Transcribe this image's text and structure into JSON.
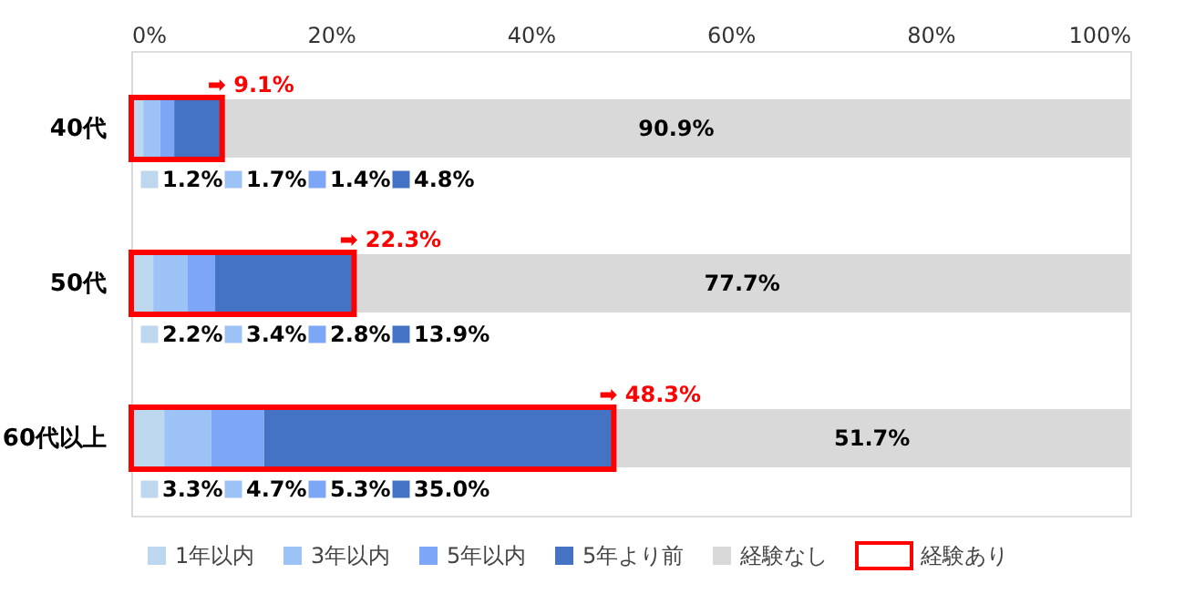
{
  "chart_data": {
    "type": "bar",
    "orientation": "horizontal",
    "categories": [
      "40代",
      "50代",
      "60代以上"
    ],
    "series": [
      {
        "name": "1年以内",
        "color": "#bdd7ee",
        "base": [
          0,
          0,
          0
        ],
        "values": [
          1.2,
          2.2,
          3.3
        ]
      },
      {
        "name": "3年以内",
        "color": "#9dc3f6",
        "base": [
          1.2,
          2.2,
          3.3
        ],
        "values": [
          1.7,
          3.4,
          4.7
        ]
      },
      {
        "name": "5年以内",
        "color": "#7ea6f6",
        "base": [
          2.9,
          5.6,
          8.0
        ],
        "values": [
          1.4,
          2.8,
          5.3
        ]
      },
      {
        "name": "5年より前",
        "color": "#4472c4",
        "base": [
          4.3,
          8.4,
          13.3
        ],
        "values": [
          4.8,
          13.9,
          35.0
        ]
      },
      {
        "name": "経験なし",
        "color": "#d9d9d9",
        "base": [
          9.1,
          22.3,
          48.3
        ],
        "values": [
          90.9,
          77.7,
          51.7
        ],
        "value_labels": [
          "90.9%",
          "77.7%",
          "51.7%"
        ]
      },
      {
        "name": "経験あり",
        "color": "#ff0000",
        "base": [
          0,
          0,
          0
        ],
        "values": [
          9.1,
          22.3,
          48.3
        ],
        "value_labels": [
          "➡ 9.1%",
          "➡ 22.3%",
          "➡ 48.3%"
        ]
      }
    ],
    "annotations": [
      "1.2%",
      "1.7%",
      "1.4%",
      "4.8%",
      "2.2%",
      "3.4%",
      "2.8%",
      "13.9%",
      "3.3%",
      "4.7%",
      "5.3%",
      "35.0%"
    ],
    "xlim": [
      0,
      100
    ],
    "xticks": [
      {
        "value": 0,
        "label": "0%"
      },
      {
        "value": 20,
        "label": "20%"
      },
      {
        "value": 40,
        "label": "40%"
      },
      {
        "value": 60,
        "label": "60%"
      },
      {
        "value": 80,
        "label": "80%"
      },
      {
        "value": 100,
        "label": "100%"
      }
    ],
    "legend": "bottom"
  }
}
